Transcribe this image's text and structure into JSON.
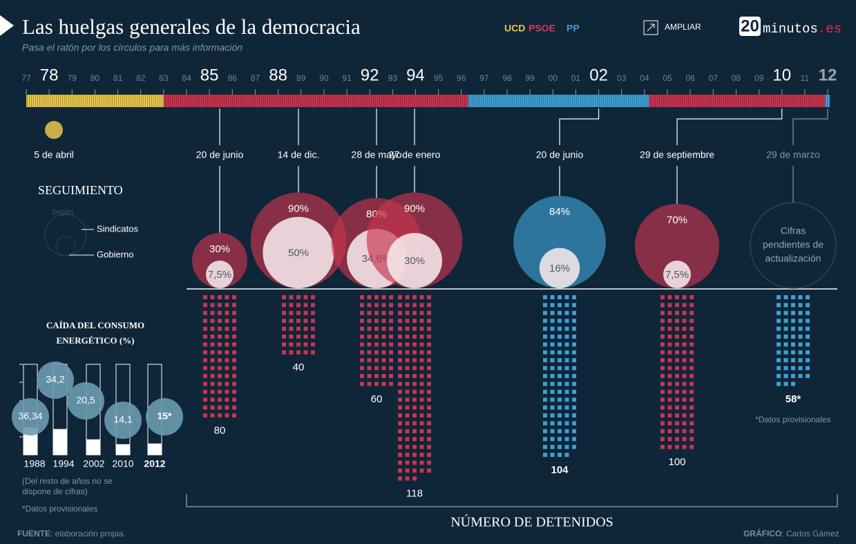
{
  "header": {
    "title": "Las huelgas generales de la democracia",
    "subtitle": "Pasa el ratón por los círculos para más información",
    "parties": [
      {
        "name": "UCD",
        "color": "#e8c64a"
      },
      {
        "name": "PSOE",
        "color": "#d03a55"
      },
      {
        "name": "PP",
        "color": "#3ea0d4"
      }
    ],
    "zoom": "AMPLIAR",
    "logo": {
      "number": "20",
      "name": "minutos",
      "domain": ".es"
    }
  },
  "timeline": {
    "years": [
      {
        "value": 1977,
        "label": "77"
      },
      {
        "value": 1978,
        "label": "78"
      },
      {
        "value": 1979,
        "label": "79"
      },
      {
        "value": 1980,
        "label": "80"
      },
      {
        "value": 1981,
        "label": "81"
      },
      {
        "value": 1982,
        "label": "82"
      },
      {
        "value": 1983,
        "label": "83"
      },
      {
        "value": 1984,
        "label": "84"
      },
      {
        "value": 1985,
        "label": "85"
      },
      {
        "value": 1986,
        "label": "86"
      },
      {
        "value": 1987,
        "label": "87"
      },
      {
        "value": 1988,
        "label": "88"
      },
      {
        "value": 1989,
        "label": "89"
      },
      {
        "value": 1990,
        "label": "90"
      },
      {
        "value": 1991,
        "label": "91"
      },
      {
        "value": 1992,
        "label": "92"
      },
      {
        "value": 1993,
        "label": "93"
      },
      {
        "value": 1994,
        "label": "94"
      },
      {
        "value": 1995,
        "label": "95"
      },
      {
        "value": 1996,
        "label": "96"
      },
      {
        "value": 1997,
        "label": "97"
      },
      {
        "value": 1998,
        "label": "98"
      },
      {
        "value": 1999,
        "label": "99"
      },
      {
        "value": 2000,
        "label": "00"
      },
      {
        "value": 2001,
        "label": "01"
      },
      {
        "value": 2002,
        "label": "02"
      },
      {
        "value": 2003,
        "label": "03"
      },
      {
        "value": 2004,
        "label": "04"
      },
      {
        "value": 2005,
        "label": "05"
      },
      {
        "value": 2006,
        "label": "06"
      },
      {
        "value": 2007,
        "label": "07"
      },
      {
        "value": 2008,
        "label": "08"
      },
      {
        "value": 2009,
        "label": "09"
      },
      {
        "value": 2010,
        "label": "10"
      },
      {
        "value": 2011,
        "label": "11"
      },
      {
        "value": 2012,
        "label": "12"
      }
    ],
    "governments": [
      {
        "start": 1977,
        "end": 1983,
        "color": "#e8c64a"
      },
      {
        "start": 1983,
        "end": 1996.3,
        "color": "#c8344e"
      },
      {
        "start": 1996.3,
        "end": 2004.2,
        "color": "#3ea0d4"
      },
      {
        "start": 2004.2,
        "end": 2011.9,
        "color": "#c8344e"
      },
      {
        "start": 2011.9,
        "end": 2012.1,
        "color": "#3ea0d4"
      }
    ]
  },
  "strikes": [
    {
      "year": 1978,
      "date": "5 de abril",
      "color": "#c9ad4a"
    },
    {
      "year": 1985,
      "date": "20 de junio",
      "color": "#c8344e",
      "unions": 30,
      "unions_label": "30%",
      "government": 7.5,
      "government_label": "7,5%",
      "detained": 80
    },
    {
      "year": 1988,
      "date": "14 de dic.",
      "color": "#c8344e",
      "unions": 90,
      "unions_label": "90%",
      "government": 50,
      "government_label": "50%",
      "detained": 40
    },
    {
      "year": 1992,
      "date": "28 de mayo",
      "color": "#c8344e",
      "unions": 80,
      "unions_label": "80%",
      "government": 34.6,
      "government_label": "34,6%",
      "detained": 60
    },
    {
      "year": 1994,
      "date": "27 de enero",
      "color": "#c8344e",
      "unions": 90,
      "unions_label": "90%",
      "government": 30,
      "government_label": "30%",
      "detained": 118
    },
    {
      "year": 2002,
      "date": "20 de junio",
      "color": "#3ea0d4",
      "unions": 84,
      "unions_label": "84%",
      "government": 16,
      "government_label": "16%",
      "detained": 104
    },
    {
      "year": 2010,
      "date": "29 de septiembre",
      "color": "#c8344e",
      "unions": 70,
      "unions_label": "70%",
      "government": 7.5,
      "government_label": "7,5%",
      "detained": 100
    },
    {
      "year": 2012,
      "date": "29 de marzo",
      "color": "#3ea0d4",
      "pending": [
        "Cifras",
        "pendientes de",
        "actualización"
      ],
      "detained": 58,
      "detained_label": "58*",
      "note": "*Datos provisionales"
    }
  ],
  "legend": {
    "title": "SEGUIMIENTO",
    "source": "Según",
    "outer": "Sindicatos",
    "inner": "Gobierno"
  },
  "detained_title": "NÚMERO DE DETENIDOS",
  "energy": {
    "title": [
      "CAÍDA DEL CONSUMO",
      "ENERGÉTICO (%)"
    ],
    "categories": [
      "1988",
      "1994",
      "2002",
      "2010",
      "2012"
    ],
    "values": [
      36.34,
      34.2,
      20.5,
      14.1,
      15
    ],
    "value_labels": [
      "36,34",
      "34,2",
      "20,5",
      "14,1",
      "15*"
    ],
    "ylim": [
      0,
      120
    ],
    "notes": [
      "(Del resto de años no se",
      "dispone de cifras)",
      "*Datos provisionales"
    ]
  },
  "footer": {
    "source_label": "FUENTE",
    "source": ": elaboración propia.",
    "credit_label": "GRÁFICO",
    "credit": ": Carlos Gámez."
  }
}
